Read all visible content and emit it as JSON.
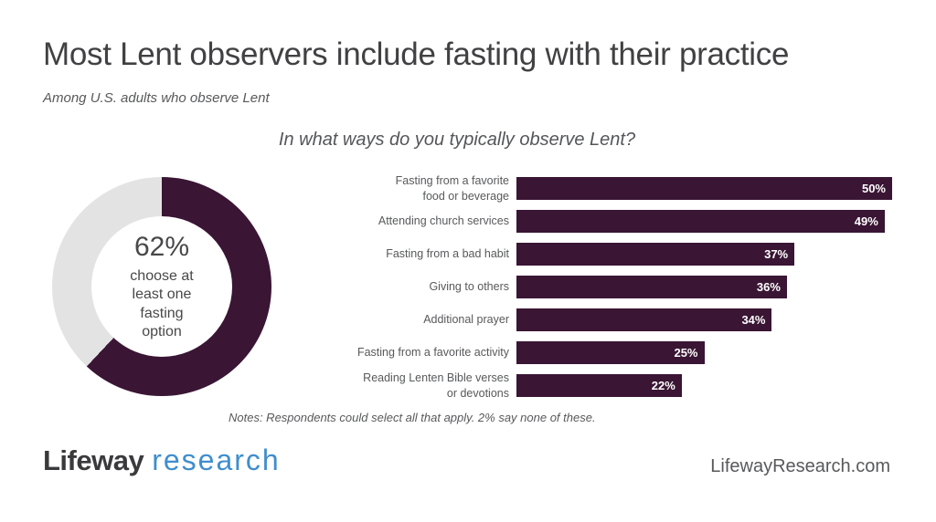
{
  "header": {
    "title": "Most Lent observers include fasting with their practice",
    "subtitle": "Among U.S. adults who observe Lent",
    "question": "In what ways do you typically observe Lent?"
  },
  "colors": {
    "plum": "#3a1534",
    "donut_empty": "#e4e3e4",
    "text_dark": "#414042",
    "text_gray": "#58595b",
    "logo_blue": "#3f8ecd"
  },
  "chart_data": [
    {
      "type": "pie",
      "subtype": "donut",
      "title": "Share choosing at least one fasting option",
      "value": 62,
      "remainder": 38,
      "center_value_label": "62%",
      "center_text_lines": [
        "choose at",
        "least one",
        "fasting",
        "option"
      ],
      "filled_color": "#3a1534",
      "empty_color": "#e4e3e4",
      "start_angle_deg": 0,
      "direction": "clockwise"
    },
    {
      "type": "bar",
      "orientation": "horizontal",
      "xlim": [
        0,
        50
      ],
      "bar_color": "#3a1534",
      "value_suffix": "%",
      "grid": false,
      "legend": false,
      "bars": [
        {
          "label": "Fasting from a favorite food or beverage",
          "label_lines": [
            "Fasting from a favorite",
            "food or beverage"
          ],
          "value": 50,
          "value_label": "50%"
        },
        {
          "label": "Attending church services",
          "label_lines": [
            "Attending church services"
          ],
          "value": 49,
          "value_label": "49%"
        },
        {
          "label": "Fasting from a bad habit",
          "label_lines": [
            "Fasting from a bad habit"
          ],
          "value": 37,
          "value_label": "37%"
        },
        {
          "label": "Giving to others",
          "label_lines": [
            "Giving to others"
          ],
          "value": 36,
          "value_label": "36%"
        },
        {
          "label": "Additional prayer",
          "label_lines": [
            "Additional prayer"
          ],
          "value": 34,
          "value_label": "34%"
        },
        {
          "label": "Fasting from a favorite activity",
          "label_lines": [
            "Fasting from a favorite activity"
          ],
          "value": 25,
          "value_label": "25%"
        },
        {
          "label": "Reading Lenten Bible verses or devotions",
          "label_lines": [
            "Reading Lenten Bible verses",
            "or devotions"
          ],
          "value": 22,
          "value_label": "22%"
        }
      ]
    }
  ],
  "notes": "Notes: Respondents could select all that apply. 2% say none of these.",
  "footer": {
    "logo_part1": "Lifeway",
    "logo_part2": "research",
    "website": "LifewayResearch.com"
  }
}
